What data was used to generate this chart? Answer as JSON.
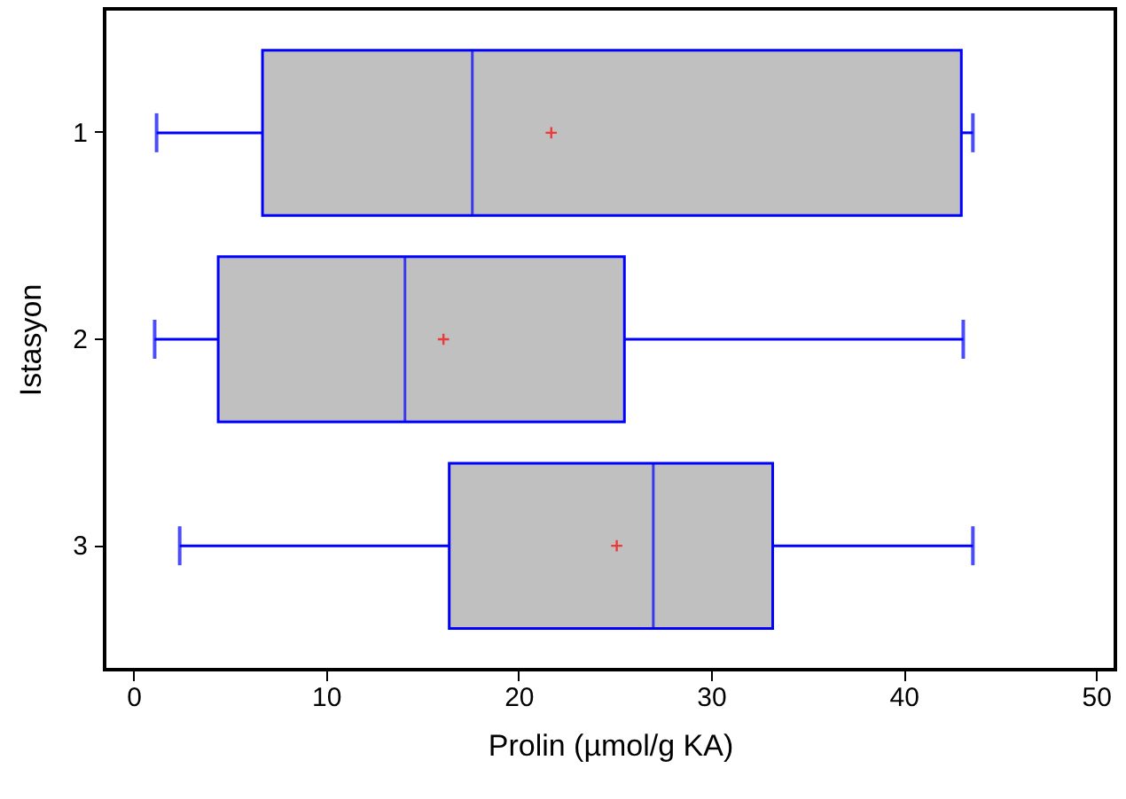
{
  "chart_data": {
    "type": "box",
    "orientation": "horizontal",
    "xlabel": "Prolin (µmol/g KA)",
    "ylabel": "Istasyon",
    "categories": [
      "1",
      "2",
      "3"
    ],
    "boxes": [
      {
        "low": 1.2,
        "q1": 6.7,
        "median": 17.6,
        "q3": 43.0,
        "high": 43.6,
        "mean": 21.7
      },
      {
        "low": 1.1,
        "q1": 4.4,
        "median": 14.1,
        "q3": 25.5,
        "high": 43.1,
        "mean": 16.1
      },
      {
        "low": 2.4,
        "q1": 16.4,
        "median": 27.0,
        "q3": 33.2,
        "high": 43.6,
        "mean": 25.1
      }
    ],
    "xlim": [
      -1.5,
      51
    ],
    "xticks": [
      0,
      10,
      20,
      30,
      40,
      50
    ],
    "grid": false
  }
}
